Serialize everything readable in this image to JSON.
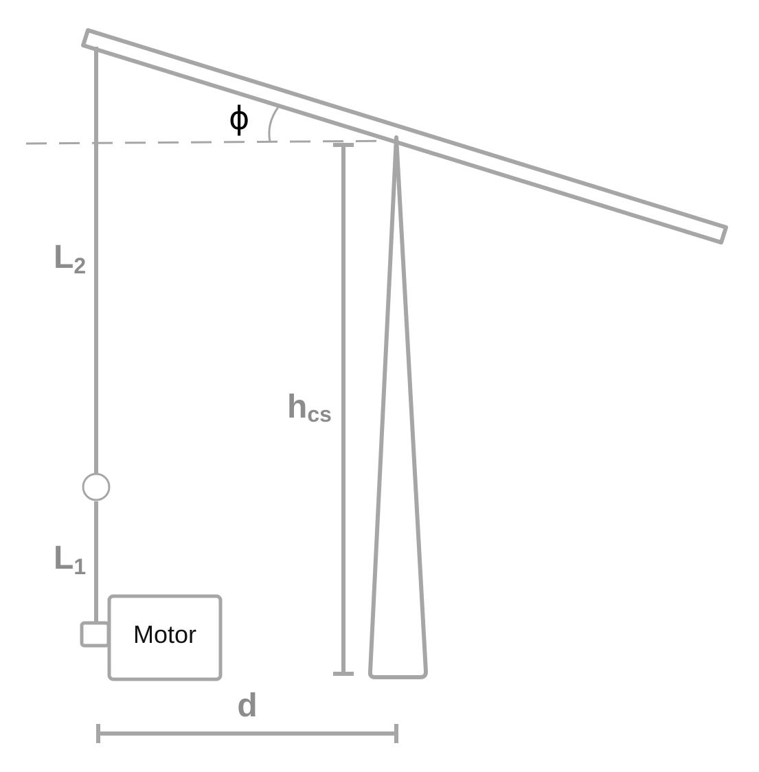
{
  "colors": {
    "stroke": "#a6a6a6",
    "label": "#8c8c8c",
    "motor_text": "#111111",
    "phi": "#000000",
    "background": "#ffffff"
  },
  "labels": {
    "phi": "ϕ",
    "l2_main": "L",
    "l2_sub": "2",
    "l1_main": "L",
    "l1_sub": "1",
    "hcs_main": "h",
    "hcs_sub": "cs",
    "d": "d",
    "motor": "Motor"
  }
}
